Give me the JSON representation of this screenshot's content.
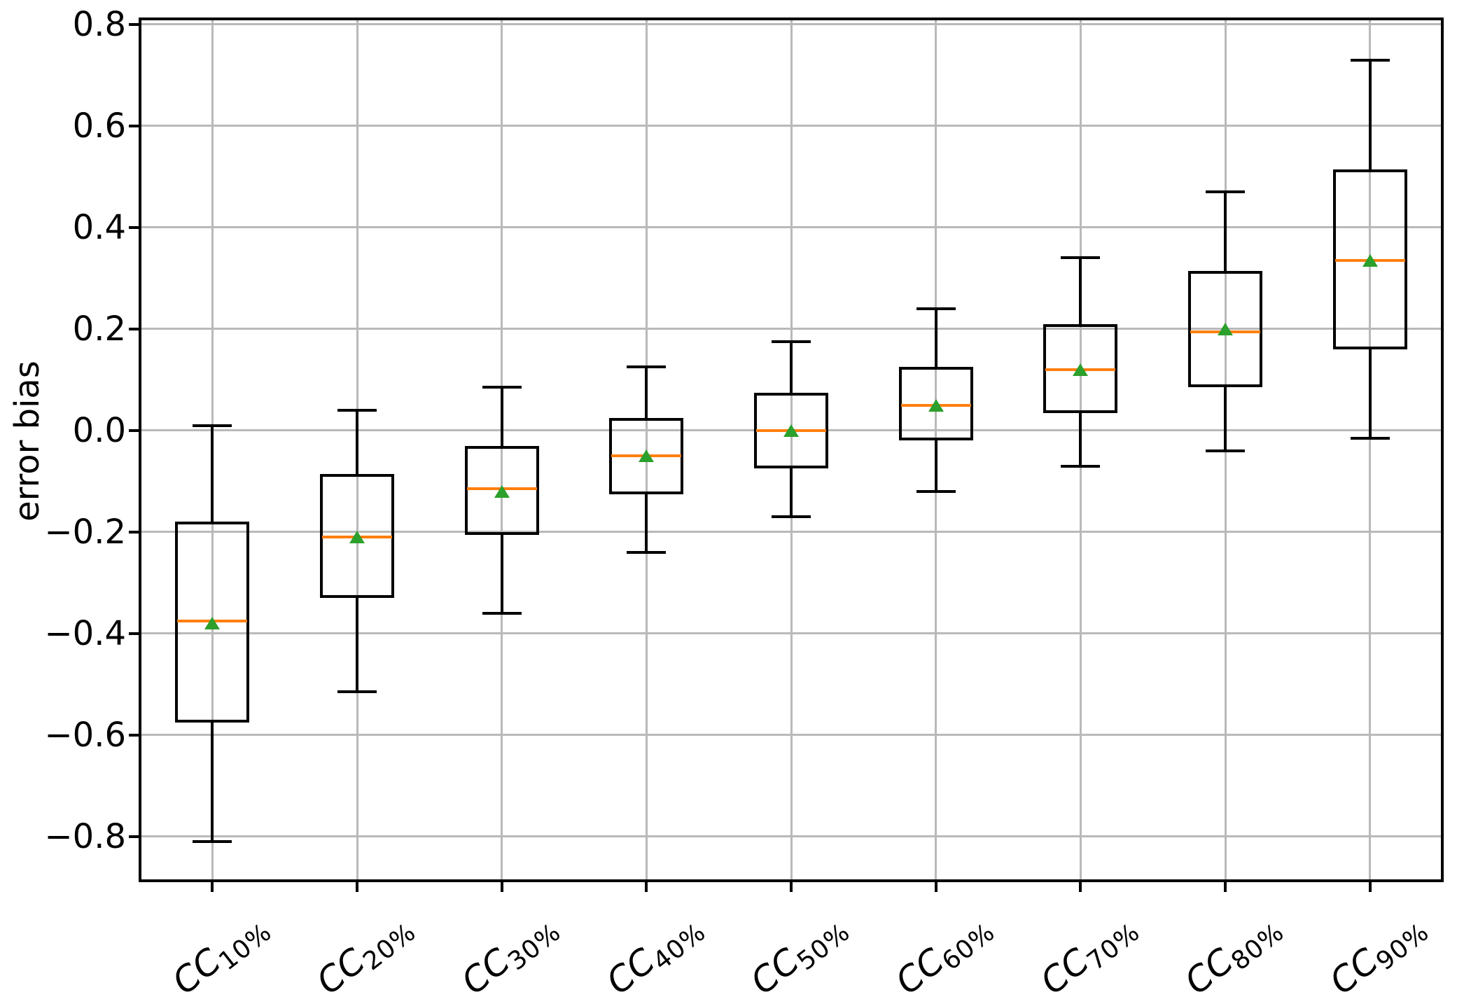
{
  "chart_data": {
    "type": "boxplot",
    "title": "",
    "xlabel": "",
    "ylabel": "error bias",
    "ylim": [
      -0.89,
      0.81
    ],
    "grid": true,
    "colors": {
      "box": "#000000",
      "median": "#ff7f0e",
      "mean_marker": "#2ca02c",
      "grid": "#b9b9b9",
      "background": "#ffffff"
    },
    "yticks": [
      {
        "v": 0.8,
        "label": "0.8"
      },
      {
        "v": 0.6,
        "label": "0.6"
      },
      {
        "v": 0.4,
        "label": "0.4"
      },
      {
        "v": 0.2,
        "label": "0.2"
      },
      {
        "v": 0.0,
        "label": "0.0"
      },
      {
        "v": -0.2,
        "label": "−0.2"
      },
      {
        "v": -0.4,
        "label": "−0.4"
      },
      {
        "v": -0.6,
        "label": "−0.6"
      },
      {
        "v": -0.8,
        "label": "−0.8"
      }
    ],
    "series": [
      {
        "label_base": "CC",
        "label_sub": "10%",
        "whislo": -0.81,
        "q1": -0.575,
        "med": -0.375,
        "mean": -0.38,
        "q3": -0.18,
        "whishi": 0.01
      },
      {
        "label_base": "CC",
        "label_sub": "20%",
        "whislo": -0.515,
        "q1": -0.33,
        "med": -0.21,
        "mean": -0.21,
        "q3": -0.085,
        "whishi": 0.04
      },
      {
        "label_base": "CC",
        "label_sub": "30%",
        "whislo": -0.36,
        "q1": -0.205,
        "med": -0.115,
        "mean": -0.12,
        "q3": -0.03,
        "whishi": 0.085
      },
      {
        "label_base": "CC",
        "label_sub": "40%",
        "whislo": -0.24,
        "q1": -0.125,
        "med": -0.05,
        "mean": -0.05,
        "q3": 0.025,
        "whishi": 0.125
      },
      {
        "label_base": "CC",
        "label_sub": "50%",
        "whislo": -0.17,
        "q1": -0.075,
        "med": 0.0,
        "mean": 0.0,
        "q3": 0.075,
        "whishi": 0.175
      },
      {
        "label_base": "CC",
        "label_sub": "60%",
        "whislo": -0.12,
        "q1": -0.02,
        "med": 0.05,
        "mean": 0.05,
        "q3": 0.125,
        "whishi": 0.24
      },
      {
        "label_base": "CC",
        "label_sub": "70%",
        "whislo": -0.07,
        "q1": 0.035,
        "med": 0.12,
        "mean": 0.12,
        "q3": 0.21,
        "whishi": 0.34
      },
      {
        "label_base": "CC",
        "label_sub": "80%",
        "whislo": -0.04,
        "q1": 0.085,
        "med": 0.195,
        "mean": 0.2,
        "q3": 0.315,
        "whishi": 0.47
      },
      {
        "label_base": "CC",
        "label_sub": "90%",
        "whislo": -0.015,
        "q1": 0.16,
        "med": 0.335,
        "mean": 0.335,
        "q3": 0.515,
        "whishi": 0.73
      }
    ]
  }
}
